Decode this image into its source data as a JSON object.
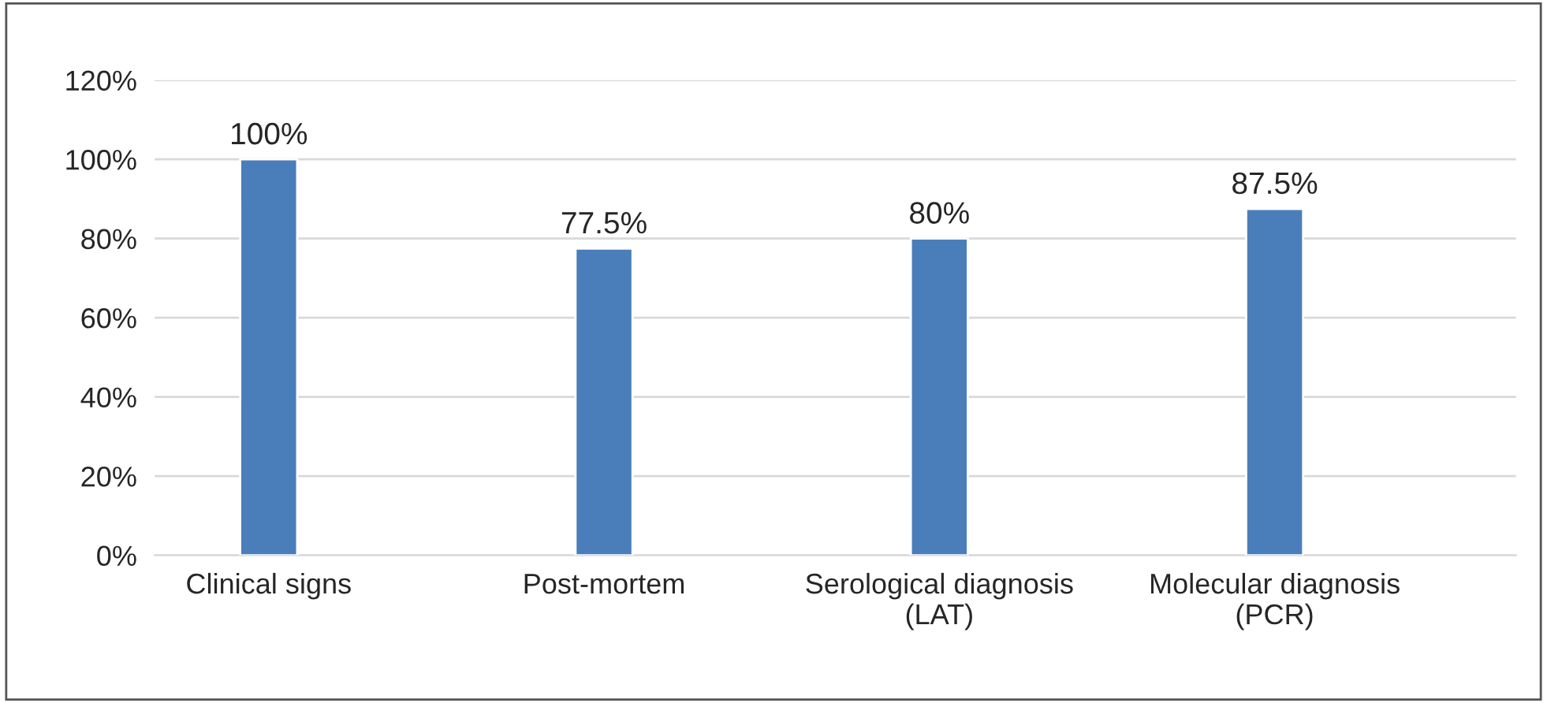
{
  "chart_data": {
    "type": "bar",
    "categories": [
      "Clinical signs",
      "Post-mortem",
      "Serological diagnosis\n(LAT)",
      "Molecular diagnosis\n(PCR)"
    ],
    "values": [
      100,
      77.5,
      80,
      87.5
    ],
    "value_labels": [
      "100%",
      "77.5%",
      "80%",
      "87.5%"
    ],
    "color": "#4a7ebb",
    "ylim": [
      0,
      120
    ],
    "yticks": [
      {
        "value": 0,
        "label": "0%"
      },
      {
        "value": 20,
        "label": "20%"
      },
      {
        "value": 40,
        "label": "40%"
      },
      {
        "value": 60,
        "label": "60%"
      },
      {
        "value": 80,
        "label": "80%"
      },
      {
        "value": 100,
        "label": "100%"
      },
      {
        "value": 120,
        "label": "120%"
      }
    ],
    "grid": "y",
    "legend": false
  }
}
